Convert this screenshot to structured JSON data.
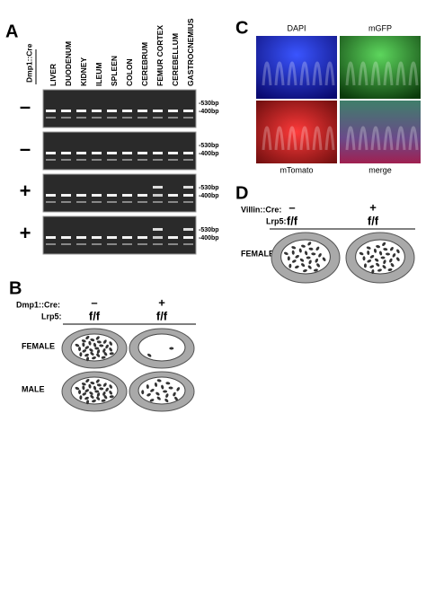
{
  "panel_a": {
    "label": "A",
    "genotype_label": "Dmp1::Cre",
    "tissues": [
      "LIVER",
      "DUODENUM",
      "KIDNEY",
      "ILEUM",
      "SPLEEN",
      "COLON",
      "CEREBRUM",
      "FEMUR CORTEX",
      "CEREBELLUM",
      "GASTROCNEMIUS"
    ],
    "gels": [
      {
        "sign": "–",
        "bands": [
          "-530bp",
          "-400bp"
        ]
      },
      {
        "sign": "–",
        "bands": [
          "-530bp",
          "-400bp"
        ]
      },
      {
        "sign": "+",
        "bands": [
          "-530bp",
          "-400bp"
        ]
      },
      {
        "sign": "+",
        "bands": [
          "-530bp",
          "-400bp"
        ]
      }
    ]
  },
  "panel_b": {
    "label": "B",
    "cre_label": "Dmp1::Cre:",
    "lrp5_label": "Lrp5:",
    "groups": [
      {
        "sign": "–",
        "genotype": "f/f"
      },
      {
        "sign": "+",
        "genotype": "f/f"
      }
    ],
    "rows": [
      "FEMALE",
      "MALE"
    ]
  },
  "panel_c": {
    "label": "C",
    "channels": [
      "DAPI",
      "mGFP",
      "mTomato",
      "merge"
    ]
  },
  "panel_d": {
    "label": "D",
    "cre_label": "Villin::Cre:",
    "lrp5_label": "Lrp5:",
    "groups": [
      {
        "sign": "–",
        "genotype": "f/f"
      },
      {
        "sign": "+",
        "genotype": "f/f"
      }
    ],
    "rows": [
      "FEMALE"
    ]
  }
}
